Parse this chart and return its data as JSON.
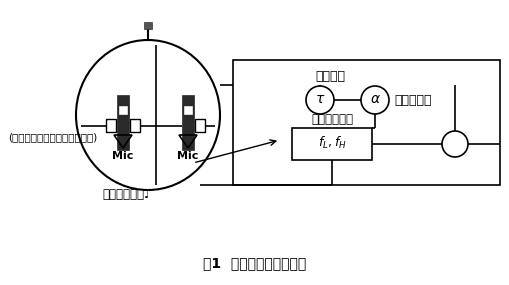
{
  "title": "图1  主动降噪原理示意图",
  "bg_color": "#ffffff",
  "line_color": "#000000",
  "text_color": "#000000",
  "label_mic1": "Mic",
  "label_mic2": "Mic",
  "label_time_delay": "时间延迟",
  "label_weight": "更新的权重",
  "label_filter": "自适应滤波器",
  "label_filter_eq": "$f_L, f_H$",
  "label_input": "输入音频信号♩",
  "label_error": "(拾取实际声音并产生误差信号)",
  "label_tau": "τ",
  "label_alpha": "α"
}
